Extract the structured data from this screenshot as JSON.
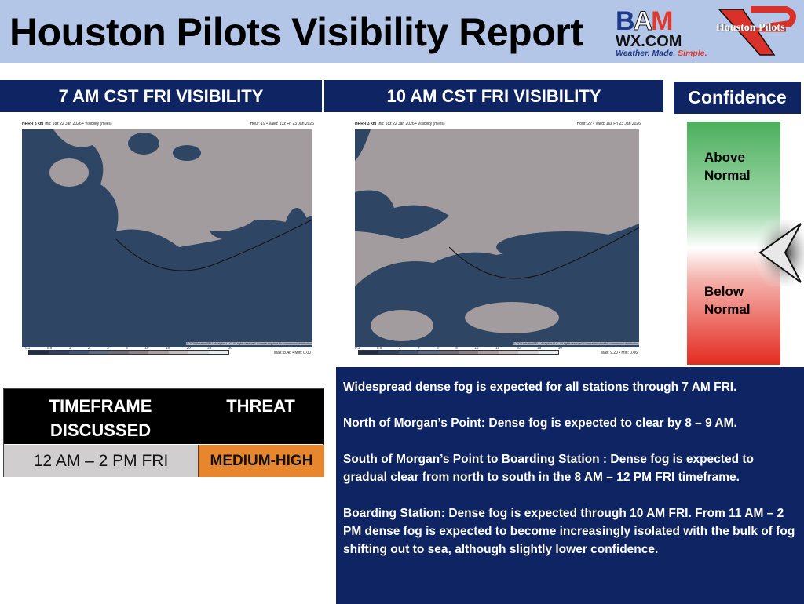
{
  "header": {
    "title": "Houston Pilots Visibility Report",
    "logo_bam": {
      "line1": "BAM",
      "line2": "WX.COM",
      "tag1": "Weather. Made. ",
      "tag2": "Simple."
    },
    "logo_hp": "Houston Pilots"
  },
  "panels": [
    {
      "title": "7 AM CST FRI VISIBILITY",
      "model": "HRRR 3 km",
      "init": "Init: 18z 22 Jan 2026 • Visibility (miles)",
      "hour": "Hour: 19 • Valid: 13z Fri 23 Jan 2026",
      "maxmin": "Max: 8.48 • Min: 0.00",
      "copyright": "© 2026 WeatherBELL Analytics LLC. All rights reserved. License required for commercial distribution."
    },
    {
      "title": "10 AM CST FRI VISIBILITY",
      "model": "HRRR 3 km",
      "init": "Init: 18z 22 Jan 2026 • Visibility (miles)",
      "hour": "Hour: 22 • Valid: 16z Fri 23 Jan 2026",
      "maxmin": "Max: 9.20 • Min: 0.06",
      "copyright": "© 2026 WeatherBELL Analytics LLC. All rights reserved. License required for commercial distribution."
    }
  ],
  "colorbar": {
    "ticks": [
      "0.1",
      "0.5",
      "1",
      "2",
      "3",
      "5",
      "10",
      "15",
      "20",
      "25",
      "30"
    ],
    "colors": [
      "#1e2f4a",
      "#2d4262",
      "#3f5677",
      "#5a6c86",
      "#6f6e78",
      "#8a8488",
      "#a8a2a4",
      "#c1bcbe",
      "#d4d4dc",
      "#e8ecf3"
    ]
  },
  "confidence": {
    "title": "Confidence",
    "above": "Above Normal",
    "below": "Below Normal",
    "level_fraction_from_top": 0.54
  },
  "table": {
    "col1": "TIMEFRAME DISCUSSED",
    "col2": "THREAT",
    "timeframe": "12 AM – 2 PM FRI",
    "threat": "MEDIUM-HIGH",
    "threat_color": "#e8862e"
  },
  "discussion": [
    "Widespread dense fog is expected for all stations through 7 AM FRI.",
    "North of Morgan’s Point:  Dense fog is expected to clear by 8 – 9 AM.",
    "South of Morgan’s Point to Boarding Station : Dense fog is expected to gradual clear from north to south in the 8 AM – 12 PM FRI timeframe.",
    "Boarding Station:  Dense fog is expected through 10 AM FRI.  From 11 AM – 2 PM dense fog is expected to become increasingly isolated with the bulk of fog shifting out to sea, although slightly lower confidence."
  ]
}
